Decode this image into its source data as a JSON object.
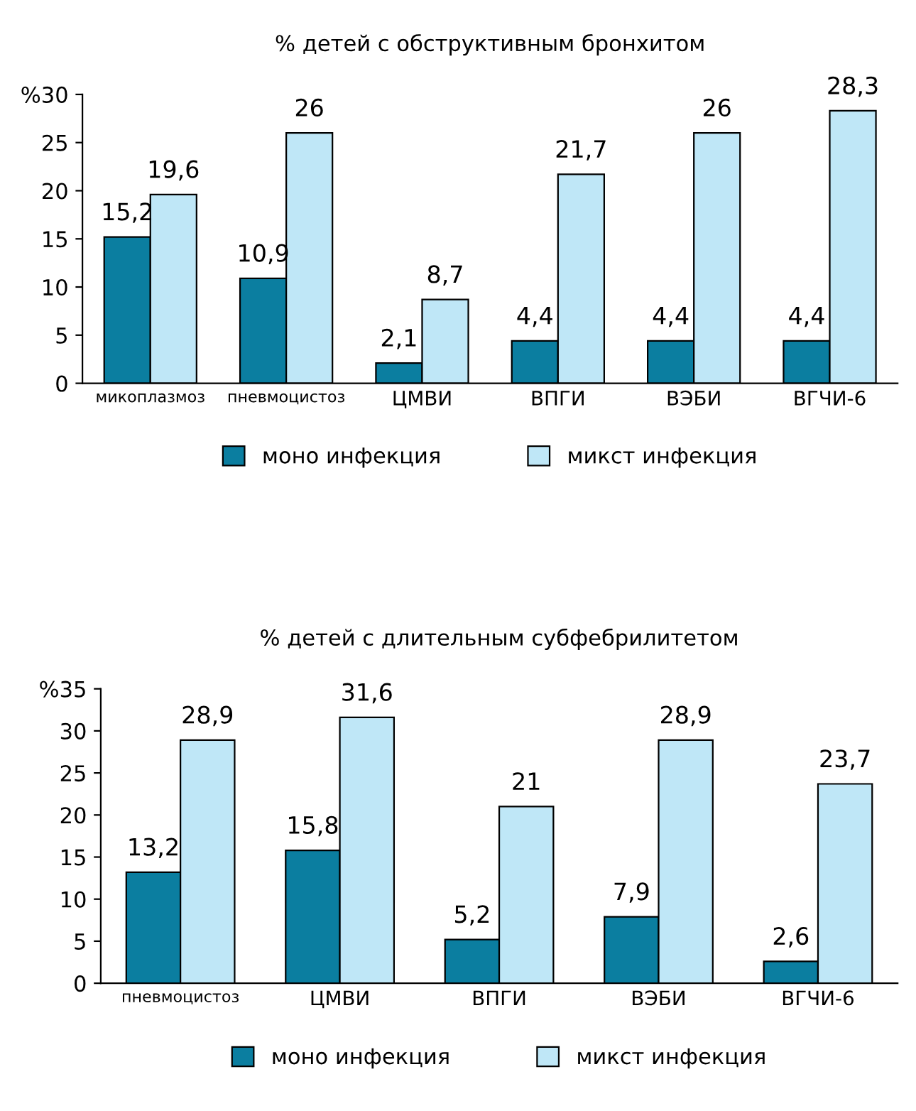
{
  "chart_data": [
    {
      "type": "bar",
      "title": "% детей с обструктивным бронхитом",
      "categories": [
        "микоплазмоз",
        "пневмоцистоз",
        "ЦМВИ",
        "ВПГИ",
        "ВЭБИ",
        "ВГЧИ-6"
      ],
      "series": [
        {
          "name": "моно инфекция",
          "color": "#0b7ea0",
          "values": [
            15.2,
            10.9,
            2.1,
            4.4,
            4.4,
            4.4
          ],
          "value_labels": [
            "15,2",
            "10,9",
            "2,1",
            "4,4",
            "4,4",
            "4,4"
          ]
        },
        {
          "name": "микст инфекция",
          "color": "#bfe7f7",
          "values": [
            19.6,
            26,
            8.7,
            21.7,
            26,
            28.3
          ],
          "value_labels": [
            "19,6",
            "26",
            "8,7",
            "21,7",
            "26",
            "28,3"
          ]
        }
      ],
      "ylim": [
        0,
        30
      ],
      "yticks": [
        0,
        5,
        10,
        15,
        20,
        25,
        {
          "value": 30,
          "label": "%30"
        }
      ],
      "legend": "bottom",
      "grid": false
    },
    {
      "type": "bar",
      "title": "% детей с длительным субфебрилитетом",
      "categories": [
        "пневмоцистоз",
        "ЦМВИ",
        "ВПГИ",
        "ВЭБИ",
        "ВГЧИ-6"
      ],
      "series": [
        {
          "name": "моно инфекция",
          "color": "#0b7ea0",
          "values": [
            13.2,
            15.8,
            5.2,
            7.9,
            2.6
          ],
          "value_labels": [
            "13,2",
            "15,8",
            "5,2",
            "7,9",
            "2,6"
          ]
        },
        {
          "name": "микст инфекция",
          "color": "#bfe7f7",
          "values": [
            28.9,
            31.6,
            21,
            28.9,
            23.7
          ],
          "value_labels": [
            "28,9",
            "31,6",
            "21",
            "28,9",
            "23,7"
          ]
        }
      ],
      "ylim": [
        0,
        35
      ],
      "yticks": [
        0,
        5,
        10,
        15,
        20,
        25,
        30,
        {
          "value": 35,
          "label": "%35"
        }
      ],
      "legend": "bottom",
      "grid": false
    }
  ]
}
